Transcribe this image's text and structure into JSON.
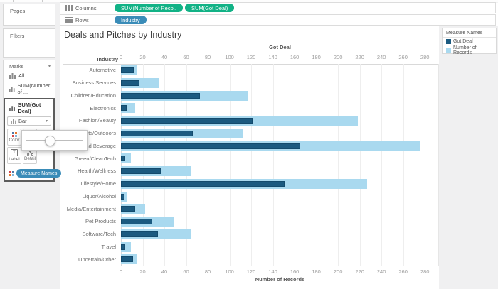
{
  "left_panel": {
    "pages_label": "Pages",
    "filters_label": "Filters",
    "marks": {
      "header": "Marks",
      "items": [
        {
          "label": "All"
        },
        {
          "label": "SUM(Number of ..."
        },
        {
          "label": "SUM(Got Deal)"
        }
      ],
      "mark_type": "Bar",
      "buttons": [
        {
          "label": "Color"
        },
        {
          "label": "Size"
        },
        {
          "label": "Label"
        },
        {
          "label": "Detail"
        }
      ],
      "measure_names_pill": "Measure Names"
    }
  },
  "shelves": {
    "columns_label": "Columns",
    "rows_label": "Rows",
    "columns_pills": [
      {
        "label": "SUM(Number of Reco..",
        "color": "#12b286",
        "name": "pill-sum-number-of-records"
      },
      {
        "label": "SUM(Got Deal)",
        "color": "#12b286",
        "name": "pill-sum-got-deal"
      }
    ],
    "rows_pills": [
      {
        "label": "Industry",
        "color": "#3a8cb8",
        "name": "pill-industry"
      }
    ]
  },
  "sheet": {
    "title": "Deals and Pitches by Industry"
  },
  "chart_data": {
    "type": "bar",
    "orientation": "horizontal",
    "title": "Deals and Pitches by Industry",
    "row_header": "Industry",
    "top_axis": {
      "label": "Got Deal"
    },
    "bottom_axis": {
      "label": "Number of Records"
    },
    "ticks": [
      0,
      20,
      40,
      60,
      80,
      100,
      120,
      140,
      160,
      180,
      200,
      220,
      240,
      260,
      280
    ],
    "xlim": [
      0,
      293
    ],
    "grid": true,
    "categories": [
      "Automotive",
      "Business Services",
      "Children/Education",
      "Electronics",
      "Fashion/Beauty",
      "Sports/Outdoors",
      "Food and Beverage",
      "Green/CleanTech",
      "Health/Wellness",
      "Lifestyle/Home",
      "Liquor/Alcohol",
      "Media/Entertainment",
      "Pet Products",
      "Software/Tech",
      "Travel",
      "Uncertain/Other"
    ],
    "series": [
      {
        "name": "Number of Records",
        "color": "#a9d9ef",
        "values": [
          15,
          35,
          117,
          13,
          218,
          112,
          276,
          9,
          64,
          227,
          6,
          22,
          49,
          64,
          9,
          15
        ]
      },
      {
        "name": "Got Deal",
        "color": "#1b5a80",
        "border_color": "#134b6d",
        "values": [
          12,
          17,
          73,
          5,
          121,
          66,
          165,
          4,
          37,
          151,
          3,
          13,
          29,
          34,
          4,
          11
        ]
      }
    ]
  },
  "legend": {
    "title": "Measure Names",
    "items": [
      {
        "label": "Got Deal",
        "color": "#1b5a80"
      },
      {
        "label": "Number of Records",
        "color": "#a9d9ef"
      }
    ]
  },
  "popup": {
    "type": "size-slider"
  }
}
